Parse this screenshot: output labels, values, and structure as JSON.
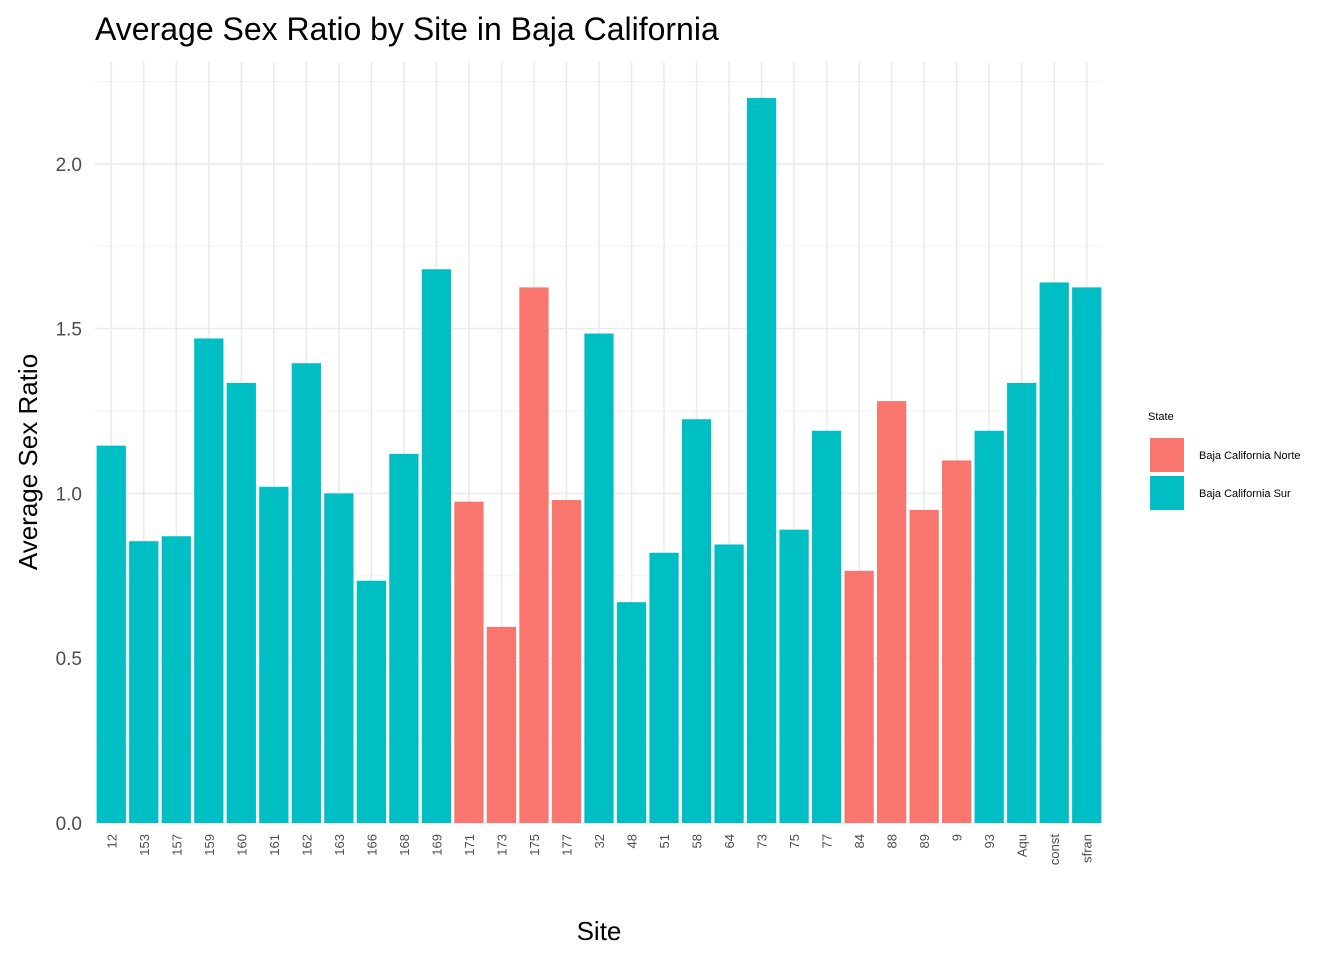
{
  "chart_data": {
    "type": "bar",
    "title": "Average Sex Ratio by Site in Baja California",
    "xlabel": "Site",
    "ylabel": "Average Sex Ratio",
    "ylim": [
      0,
      2.3
    ],
    "yticks": [
      "0.0",
      "0.5",
      "1.0",
      "1.5",
      "2.0"
    ],
    "grid": true,
    "legend_placement": "right",
    "legend": {
      "title": "State",
      "entries": [
        {
          "name": "Baja California Norte",
          "color": "#F8766D"
        },
        {
          "name": "Baja California Sur",
          "color": "#00BFC4"
        }
      ]
    },
    "categories": [
      "12",
      "153",
      "157",
      "159",
      "160",
      "161",
      "162",
      "163",
      "166",
      "168",
      "169",
      "171",
      "173",
      "175",
      "177",
      "32",
      "48",
      "51",
      "58",
      "64",
      "73",
      "75",
      "77",
      "84",
      "88",
      "89",
      "9",
      "93",
      "Aqu",
      "const",
      "sfran"
    ],
    "values": [
      1.145,
      0.855,
      0.87,
      1.47,
      1.335,
      1.02,
      1.395,
      1.0,
      0.735,
      1.12,
      1.68,
      0.975,
      0.595,
      1.625,
      0.98,
      1.485,
      0.67,
      0.82,
      1.225,
      0.845,
      2.2,
      0.89,
      1.19,
      0.765,
      1.28,
      0.95,
      1.1,
      1.19,
      1.335,
      1.64,
      1.625
    ],
    "state": [
      "Baja California Sur",
      "Baja California Sur",
      "Baja California Sur",
      "Baja California Sur",
      "Baja California Sur",
      "Baja California Sur",
      "Baja California Sur",
      "Baja California Sur",
      "Baja California Sur",
      "Baja California Sur",
      "Baja California Sur",
      "Baja California Norte",
      "Baja California Norte",
      "Baja California Norte",
      "Baja California Norte",
      "Baja California Sur",
      "Baja California Sur",
      "Baja California Sur",
      "Baja California Sur",
      "Baja California Sur",
      "Baja California Sur",
      "Baja California Sur",
      "Baja California Sur",
      "Baja California Norte",
      "Baja California Norte",
      "Baja California Norte",
      "Baja California Norte",
      "Baja California Sur",
      "Baja California Sur",
      "Baja California Sur",
      "Baja California Sur"
    ]
  }
}
